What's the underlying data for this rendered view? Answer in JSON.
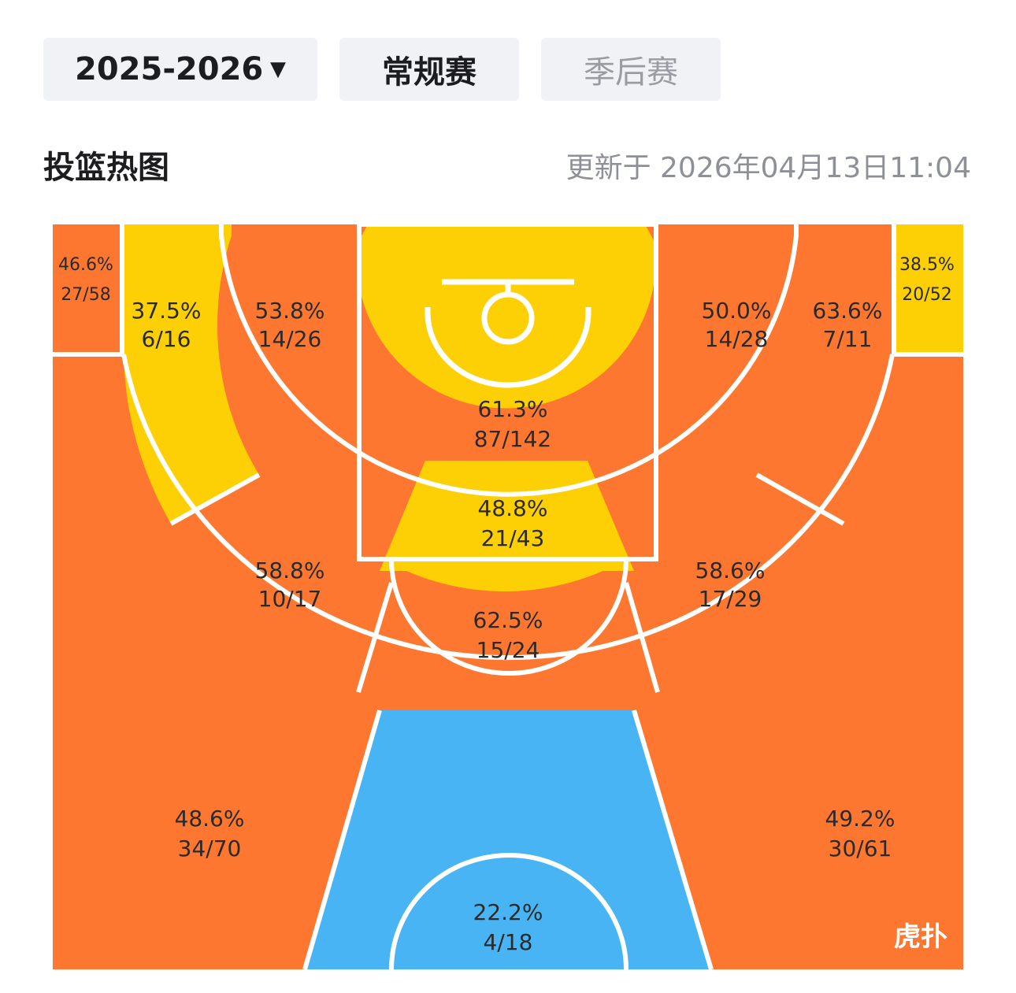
{
  "filters": {
    "season": "2025-2026",
    "tabs": [
      {
        "label": "常规赛",
        "active": true
      },
      {
        "label": "季后赛",
        "active": false
      }
    ]
  },
  "section_title": "投篮热图",
  "updated": "更新于 2026年04月13日11:04",
  "colors": {
    "hot": "#fd7730",
    "warm": "#fcd005",
    "cold": "#48b4f4",
    "line": "#ffffff"
  },
  "chart_data": {
    "type": "heatmap",
    "zones": [
      {
        "zone": "left-corner-three",
        "pct": "46.6%",
        "made_att": "27/58",
        "heat": "hot"
      },
      {
        "zone": "left-baseline-long-two",
        "pct": "37.5%",
        "made_att": "6/16",
        "heat": "warm"
      },
      {
        "zone": "left-short-mid",
        "pct": "53.8%",
        "made_att": "14/26",
        "heat": "hot"
      },
      {
        "zone": "restricted-area",
        "pct": "61.3%",
        "made_att": "87/142",
        "heat": "warm"
      },
      {
        "zone": "right-short-mid",
        "pct": "50.0%",
        "made_att": "14/28",
        "heat": "hot"
      },
      {
        "zone": "right-baseline-long-two",
        "pct": "63.6%",
        "made_att": "7/11",
        "heat": "hot"
      },
      {
        "zone": "right-corner-three",
        "pct": "38.5%",
        "made_att": "20/52",
        "heat": "warm"
      },
      {
        "zone": "paint-non-ra",
        "pct": "48.8%",
        "made_att": "21/43",
        "heat": "warm"
      },
      {
        "zone": "left-wing-long-two",
        "pct": "58.8%",
        "made_att": "10/17",
        "heat": "hot"
      },
      {
        "zone": "top-long-two",
        "pct": "62.5%",
        "made_att": "15/24",
        "heat": "hot"
      },
      {
        "zone": "right-wing-long-two",
        "pct": "58.6%",
        "made_att": "17/29",
        "heat": "hot"
      },
      {
        "zone": "left-wing-three",
        "pct": "48.6%",
        "made_att": "34/70",
        "heat": "hot"
      },
      {
        "zone": "top-three",
        "pct": "22.2%",
        "made_att": "4/18",
        "heat": "cold"
      },
      {
        "zone": "right-wing-three",
        "pct": "49.2%",
        "made_att": "30/61",
        "heat": "hot"
      }
    ]
  }
}
